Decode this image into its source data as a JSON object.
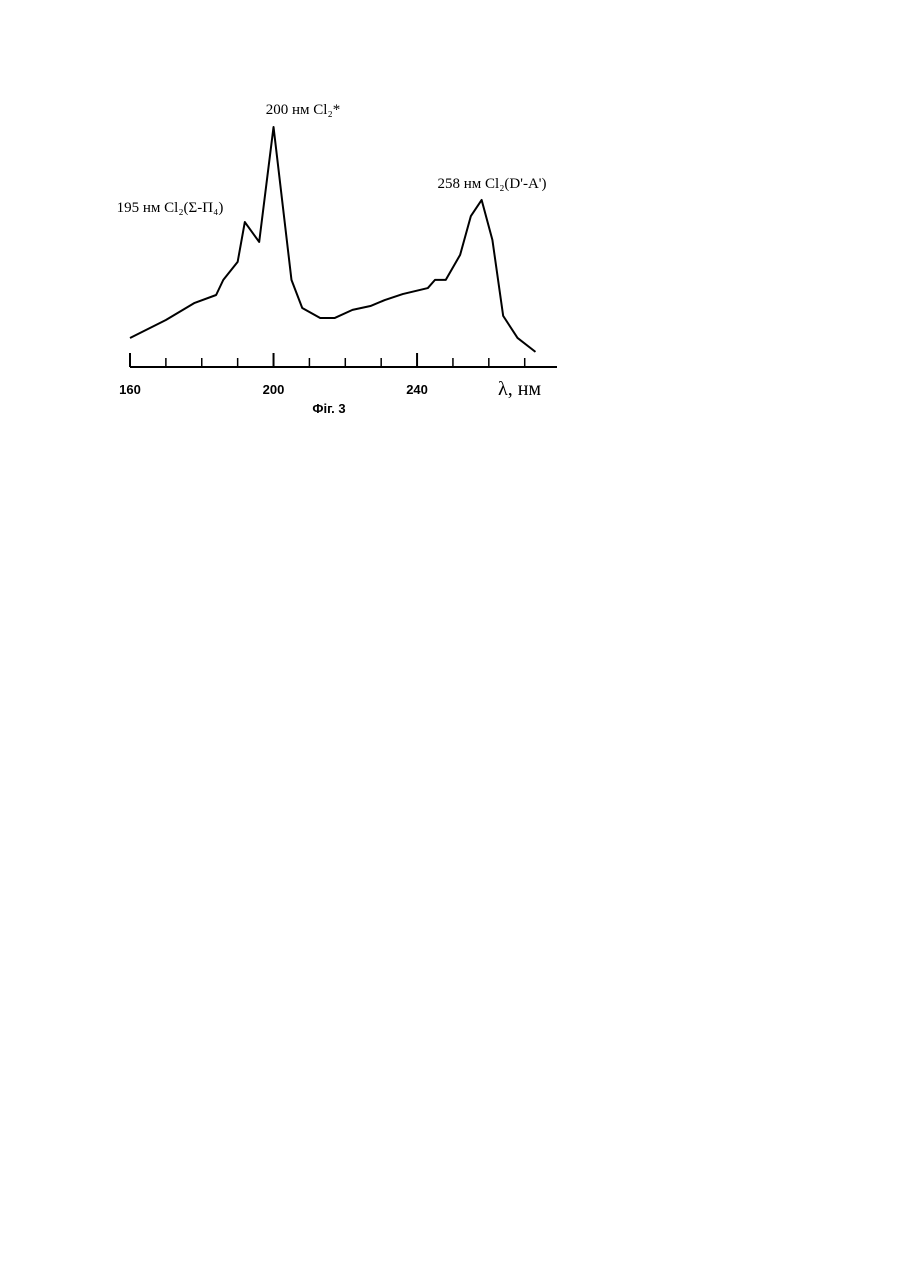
{
  "chart_data": {
    "type": "line",
    "caption": "Фіг. 3",
    "x_label": "λ, нм",
    "annotations": [
      {
        "text": "195 нм Cl₂(Σ-Π₄)",
        "x": 192
      },
      {
        "text": "200 нм Cl₂*",
        "x": 200
      },
      {
        "text": "258 нм Cl₂(D'-A')",
        "x": 258
      }
    ],
    "x": [
      160,
      170,
      178,
      184,
      186,
      190,
      192,
      196,
      200,
      205,
      208,
      213,
      217,
      222,
      227,
      231,
      236,
      243,
      245,
      248,
      252,
      255,
      258,
      261,
      264,
      268,
      273
    ],
    "series": [
      {
        "color": "#000000",
        "values": [
          12.1,
          19.6,
          26.7,
          30,
          36.3,
          43.8,
          60.4,
          52.1,
          100,
          36.3,
          24.6,
          20.4,
          20.4,
          23.8,
          25.4,
          27.9,
          30.4,
          32.9,
          36.3,
          36.3,
          46.7,
          62.9,
          69.6,
          52.9,
          21.3,
          12.1,
          6.3
        ]
      }
    ],
    "xlim": [
      160,
      279
    ],
    "ylim": [
      0,
      100
    ],
    "xticks": [
      160,
      200,
      240
    ],
    "xticks_minor": [
      170,
      180,
      190,
      210,
      220,
      230,
      250,
      260,
      270
    ]
  }
}
